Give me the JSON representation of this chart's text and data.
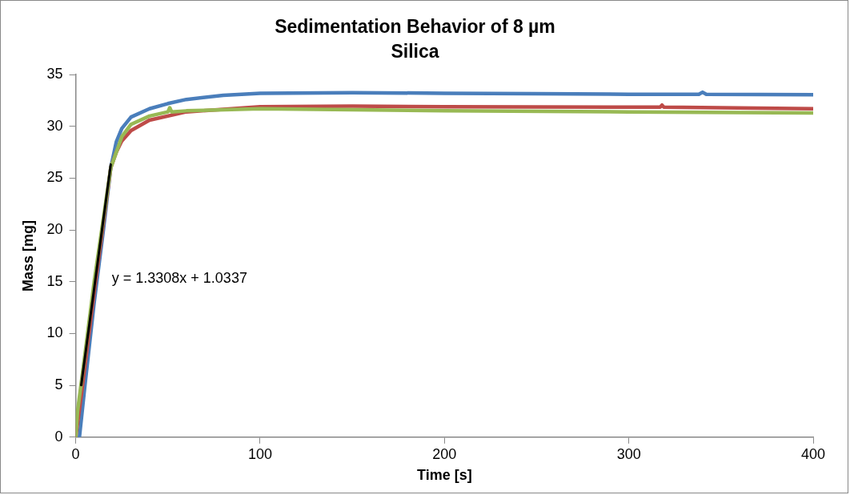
{
  "chart_data": {
    "type": "line",
    "title": "Sedimentation Behavior of 8 µm\nSilica",
    "xlabel": "Time [s]",
    "ylabel": "Mass [mg]",
    "xlim": [
      0,
      400
    ],
    "xticks": [
      0,
      100,
      200,
      300,
      400
    ],
    "ylim": [
      0,
      35
    ],
    "yticks": [
      0,
      5,
      10,
      15,
      20,
      25,
      30,
      35
    ],
    "grid": false,
    "legend": false,
    "marker": "none",
    "line_style": "solid",
    "series": [
      {
        "color": "#4a7ebb",
        "x": [
          2,
          5,
          10,
          15,
          19,
          22,
          25,
          30,
          40,
          50,
          60,
          80,
          100,
          150,
          200,
          250,
          300,
          338,
          340,
          342,
          400
        ],
        "values": [
          0,
          5,
          13,
          20,
          26,
          28.5,
          29.8,
          30.9,
          31.7,
          32.2,
          32.6,
          33,
          33.2,
          33.25,
          33.2,
          33.15,
          33.1,
          33.1,
          33.3,
          33.1,
          33.05
        ]
      },
      {
        "color": "#be4b48",
        "x": [
          0,
          3,
          10,
          19,
          22,
          25,
          30,
          40,
          60,
          100,
          150,
          200,
          317,
          318,
          319,
          400
        ],
        "values": [
          0,
          4,
          14,
          26,
          27.5,
          28.6,
          29.6,
          30.6,
          31.4,
          31.9,
          31.95,
          31.9,
          31.85,
          32.05,
          31.85,
          31.7
        ]
      },
      {
        "color": "#98b954",
        "x": [
          0,
          1,
          5,
          10,
          19,
          25,
          30,
          40,
          50,
          51,
          52,
          60,
          100,
          150,
          200,
          300,
          400
        ],
        "values": [
          0,
          2.5,
          8,
          15,
          26,
          29,
          30.2,
          31,
          31.4,
          31.8,
          31.4,
          31.5,
          31.7,
          31.6,
          31.5,
          31.4,
          31.3
        ]
      },
      {
        "type": "line",
        "color": "#000000",
        "x": [
          3,
          19
        ],
        "values": [
          5.03,
          26.32
        ]
      }
    ],
    "annotations": [
      "y = 1.3308x + 1.0337"
    ]
  }
}
